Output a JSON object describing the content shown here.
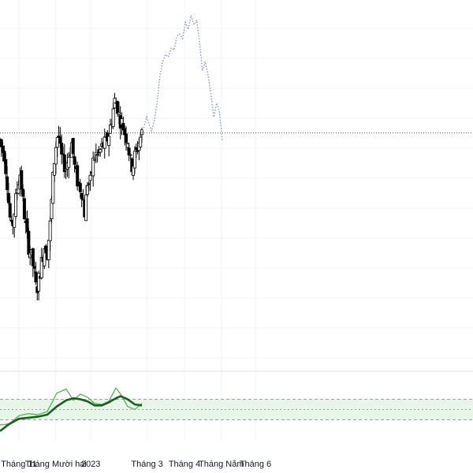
{
  "colors": {
    "background": "#ffffff",
    "grid": "#f0f3fa",
    "candle": "#000000",
    "reference_line": "#555555",
    "projection": "#7b8fd6",
    "oscillator_fast": "#5cb85c",
    "oscillator_slow": "#1b5e20",
    "oscillator_band": "#e8f5e9",
    "oscillator_band_border": "#9e9e9e",
    "panel_divider": "#e0e3eb"
  },
  "chart_data": [
    {
      "type": "candlestick",
      "title": "",
      "xlabel": "",
      "ylabel": "",
      "grid": true,
      "x_tick_labels": [
        "Tháng 11",
        "Tháng Mười hai",
        "2023",
        "Tháng 3",
        "Tháng 4",
        "Tháng Năm",
        "Tháng 6"
      ],
      "x_tick_positions": [
        0.04,
        0.118,
        0.192,
        0.311,
        0.39,
        0.468,
        0.54
      ],
      "ylim": [
        0,
        100
      ],
      "reference_level": 64.3,
      "price_path": [
        [
          0.0,
          62.3
        ],
        [
          0.004,
          59.7
        ],
        [
          0.009,
          58.4
        ],
        [
          0.015,
          50.6
        ],
        [
          0.02,
          41.6
        ],
        [
          0.025,
          36.4
        ],
        [
          0.031,
          42.9
        ],
        [
          0.037,
          49.4
        ],
        [
          0.043,
          53.2
        ],
        [
          0.048,
          45.5
        ],
        [
          0.054,
          38.3
        ],
        [
          0.06,
          32.5
        ],
        [
          0.066,
          29.9
        ],
        [
          0.072,
          25.3
        ],
        [
          0.077,
          19.5
        ],
        [
          0.083,
          24.0
        ],
        [
          0.089,
          28.6
        ],
        [
          0.095,
          33.1
        ],
        [
          0.1,
          30.5
        ],
        [
          0.106,
          38.3
        ],
        [
          0.112,
          51.3
        ],
        [
          0.117,
          59.7
        ],
        [
          0.123,
          64.9
        ],
        [
          0.128,
          58.4
        ],
        [
          0.134,
          55.8
        ],
        [
          0.14,
          54.5
        ],
        [
          0.146,
          58.4
        ],
        [
          0.152,
          61.7
        ],
        [
          0.157,
          55.2
        ],
        [
          0.162,
          51.3
        ],
        [
          0.168,
          49.4
        ],
        [
          0.174,
          47.4
        ],
        [
          0.179,
          41.6
        ],
        [
          0.185,
          50.6
        ],
        [
          0.19,
          49.4
        ],
        [
          0.196,
          55.8
        ],
        [
          0.202,
          58.4
        ],
        [
          0.208,
          57.8
        ],
        [
          0.213,
          59.7
        ],
        [
          0.219,
          61.0
        ],
        [
          0.225,
          61.7
        ],
        [
          0.231,
          64.3
        ],
        [
          0.237,
          68.8
        ],
        [
          0.242,
          73.4
        ],
        [
          0.247,
          72.7
        ],
        [
          0.253,
          68.2
        ],
        [
          0.259,
          66.9
        ],
        [
          0.265,
          63.6
        ],
        [
          0.27,
          62.3
        ],
        [
          0.275,
          56.5
        ],
        [
          0.28,
          54.5
        ],
        [
          0.285,
          57.8
        ],
        [
          0.29,
          59.7
        ],
        [
          0.295,
          62.3
        ],
        [
          0.3,
          64.3
        ]
      ],
      "candle_spread": 4.5,
      "projection": [
        [
          0.3,
          64.3
        ],
        [
          0.305,
          66.2
        ],
        [
          0.31,
          68.8
        ],
        [
          0.315,
          66.9
        ],
        [
          0.32,
          64.9
        ],
        [
          0.326,
          67.5
        ],
        [
          0.332,
          72.7
        ],
        [
          0.338,
          80.5
        ],
        [
          0.344,
          84.4
        ],
        [
          0.35,
          86.4
        ],
        [
          0.356,
          85.7
        ],
        [
          0.362,
          88.3
        ],
        [
          0.368,
          87.7
        ],
        [
          0.374,
          91.6
        ],
        [
          0.38,
          92.2
        ],
        [
          0.386,
          90.9
        ],
        [
          0.392,
          95.5
        ],
        [
          0.398,
          93.5
        ],
        [
          0.404,
          97.4
        ],
        [
          0.41,
          94.8
        ],
        [
          0.416,
          96.1
        ],
        [
          0.422,
          89.6
        ],
        [
          0.428,
          81.8
        ],
        [
          0.434,
          84.4
        ],
        [
          0.44,
          80.5
        ],
        [
          0.446,
          75.3
        ],
        [
          0.452,
          68.8
        ],
        [
          0.458,
          72.7
        ],
        [
          0.464,
          70.1
        ],
        [
          0.47,
          62.3
        ]
      ]
    },
    {
      "type": "line",
      "title": "",
      "ylim": [
        0,
        100
      ],
      "band": [
        30,
        70
      ],
      "band_mid": 50,
      "series": [
        {
          "role": "fast",
          "x": [
            0.0,
            0.02,
            0.04,
            0.06,
            0.08,
            0.1,
            0.12,
            0.14,
            0.155,
            0.17,
            0.185,
            0.2,
            0.215,
            0.23,
            0.245,
            0.255,
            0.27,
            0.285,
            0.3
          ],
          "values": [
            20,
            22,
            38,
            42,
            40,
            46,
            82,
            90,
            68,
            80,
            74,
            62,
            60,
            66,
            92,
            80,
            56,
            50,
            62
          ]
        },
        {
          "role": "slow",
          "x": [
            0.0,
            0.02,
            0.04,
            0.06,
            0.08,
            0.1,
            0.12,
            0.14,
            0.155,
            0.17,
            0.185,
            0.2,
            0.215,
            0.23,
            0.245,
            0.255,
            0.27,
            0.285,
            0.3
          ],
          "values": [
            8,
            22,
            32,
            34,
            36,
            40,
            56,
            68,
            72,
            70,
            66,
            58,
            58,
            64,
            72,
            76,
            70,
            60,
            58
          ]
        }
      ]
    }
  ]
}
